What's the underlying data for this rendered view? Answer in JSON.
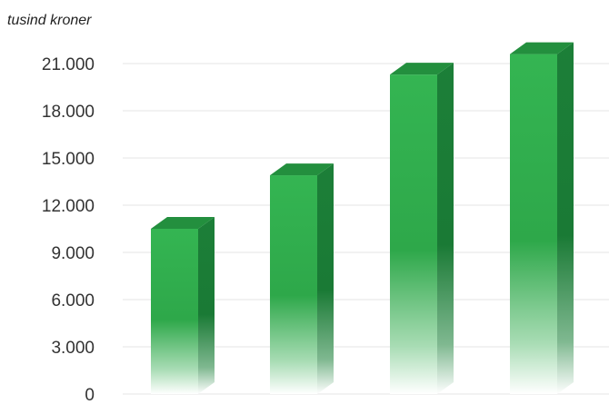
{
  "chart_data": {
    "type": "bar",
    "title": "",
    "xlabel": "",
    "ylabel": "tusind kroner",
    "categories": [
      "",
      "",
      "",
      ""
    ],
    "values": [
      10500,
      13900,
      20300,
      21600
    ],
    "ylim": [
      0,
      21000
    ],
    "yticks": [
      0,
      3000,
      6000,
      9000,
      12000,
      15000,
      18000,
      21000
    ],
    "ytick_labels": [
      "0",
      "3.000",
      "6.000",
      "9.000",
      "12.000",
      "15.000",
      "18.000",
      "21.000"
    ],
    "grid": true,
    "legend": "none",
    "colors": {
      "bar_front": "#2ea84a",
      "bar_side": "#1a7a35",
      "bar_top": "#238f3e",
      "grid": "#e6e6e6"
    }
  }
}
